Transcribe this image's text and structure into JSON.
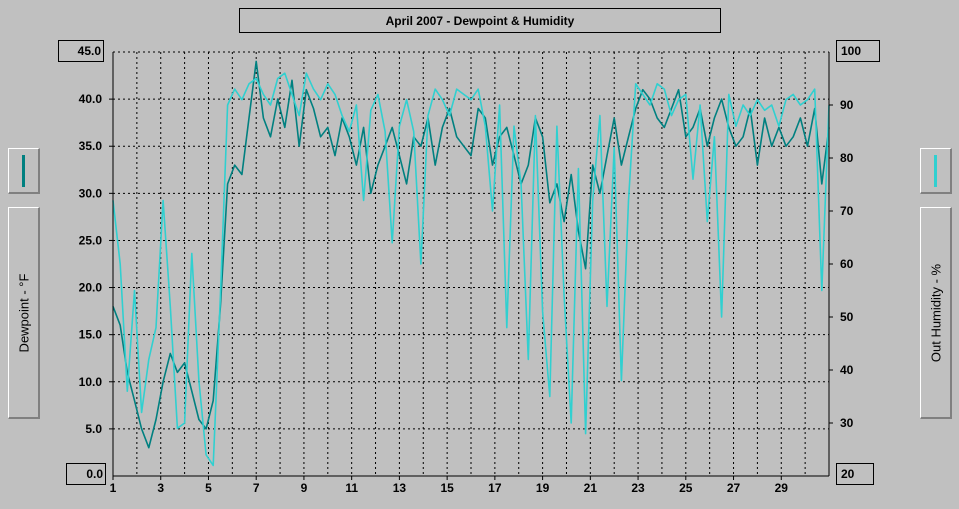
{
  "window": {
    "title": "April 2007 - Dewpoint & Humidity"
  },
  "legend": {
    "left": {
      "axis_title": "Dewpoint - °F",
      "color": "#008080"
    },
    "right": {
      "axis_title": "Out Humidity - %",
      "color": "#30d0d0"
    }
  },
  "chart_data": {
    "type": "line",
    "title": "April 2007 - Dewpoint & Humidity",
    "x_ticks": [
      "1",
      "3",
      "5",
      "7",
      "9",
      "11",
      "13",
      "15",
      "17",
      "19",
      "21",
      "23",
      "25",
      "27",
      "29"
    ],
    "xlim": [
      1,
      31
    ],
    "y_left": {
      "label": "Dewpoint - °F",
      "range": [
        0,
        45
      ],
      "ticks": [
        "0.0",
        "5.0",
        "10.0",
        "15.0",
        "20.0",
        "25.0",
        "30.0",
        "35.0",
        "40.0",
        "45.0"
      ]
    },
    "y_right": {
      "label": "Out Humidity - %",
      "range": [
        20,
        100
      ],
      "ticks": [
        "20",
        "30",
        "40",
        "50",
        "60",
        "70",
        "80",
        "90",
        "100"
      ]
    },
    "grid": true,
    "series": [
      {
        "name": "Dewpoint - °F",
        "axis": "left",
        "color": "#008080",
        "x": [
          1.0,
          1.3,
          1.6,
          1.9,
          2.2,
          2.5,
          2.8,
          3.1,
          3.4,
          3.7,
          4.0,
          4.3,
          4.6,
          4.9,
          5.2,
          5.5,
          5.8,
          6.1,
          6.4,
          6.7,
          7.0,
          7.3,
          7.6,
          7.9,
          8.2,
          8.5,
          8.8,
          9.1,
          9.4,
          9.7,
          10.0,
          10.3,
          10.6,
          10.9,
          11.2,
          11.5,
          11.8,
          12.1,
          12.4,
          12.7,
          13.0,
          13.3,
          13.6,
          13.9,
          14.2,
          14.5,
          14.8,
          15.1,
          15.4,
          15.7,
          16.0,
          16.3,
          16.6,
          16.9,
          17.2,
          17.5,
          17.8,
          18.1,
          18.4,
          18.7,
          19.0,
          19.3,
          19.6,
          19.9,
          20.2,
          20.5,
          20.8,
          21.1,
          21.4,
          21.7,
          22.0,
          22.3,
          22.6,
          22.9,
          23.2,
          23.5,
          23.8,
          24.1,
          24.4,
          24.7,
          25.0,
          25.3,
          25.6,
          25.9,
          26.2,
          26.5,
          26.8,
          27.1,
          27.4,
          27.7,
          28.0,
          28.3,
          28.6,
          28.9,
          29.2,
          29.5,
          29.8,
          30.1,
          30.4,
          30.7,
          31.0
        ],
        "values": [
          18,
          16,
          11,
          8,
          5,
          3,
          6,
          10,
          13,
          11,
          12,
          9,
          6,
          5,
          8,
          18,
          31,
          33,
          32,
          38,
          44,
          38,
          36,
          40,
          37,
          42,
          35,
          41,
          39,
          36,
          37,
          34,
          38,
          36,
          33,
          37,
          30,
          33,
          35,
          37,
          34,
          31,
          36,
          35,
          38,
          33,
          37,
          39,
          36,
          35,
          34,
          39,
          38,
          33,
          36,
          37,
          34,
          31,
          33,
          38,
          36,
          29,
          31,
          27,
          32,
          26,
          22,
          33,
          30,
          34,
          38,
          33,
          36,
          39,
          41,
          40,
          38,
          37,
          39,
          41,
          36,
          37,
          39,
          35,
          38,
          40,
          37,
          35,
          36,
          39,
          33,
          38,
          35,
          37,
          35,
          36,
          38,
          35,
          39,
          31,
          37
        ]
      },
      {
        "name": "Out Humidity - %",
        "axis": "right",
        "color": "#30d0d0",
        "x": [
          1.0,
          1.3,
          1.6,
          1.9,
          2.2,
          2.5,
          2.8,
          3.1,
          3.4,
          3.7,
          4.0,
          4.3,
          4.6,
          4.9,
          5.2,
          5.5,
          5.8,
          6.1,
          6.4,
          6.7,
          7.0,
          7.3,
          7.6,
          7.9,
          8.2,
          8.5,
          8.8,
          9.1,
          9.4,
          9.7,
          10.0,
          10.3,
          10.6,
          10.9,
          11.2,
          11.5,
          11.8,
          12.1,
          12.4,
          12.7,
          13.0,
          13.3,
          13.6,
          13.9,
          14.2,
          14.5,
          14.8,
          15.1,
          15.4,
          15.7,
          16.0,
          16.3,
          16.6,
          16.9,
          17.2,
          17.5,
          17.8,
          18.1,
          18.4,
          18.7,
          19.0,
          19.3,
          19.6,
          19.9,
          20.2,
          20.5,
          20.8,
          21.1,
          21.4,
          21.7,
          22.0,
          22.3,
          22.6,
          22.9,
          23.2,
          23.5,
          23.8,
          24.1,
          24.4,
          24.7,
          25.0,
          25.3,
          25.6,
          25.9,
          26.2,
          26.5,
          26.8,
          27.1,
          27.4,
          27.7,
          28.0,
          28.3,
          28.6,
          28.9,
          29.2,
          29.5,
          29.8,
          30.1,
          30.4,
          30.7,
          31.0
        ],
        "values": [
          72,
          60,
          36,
          55,
          32,
          42,
          48,
          72,
          52,
          29,
          30,
          62,
          38,
          24,
          22,
          54,
          90,
          93,
          91,
          94,
          95,
          92,
          90,
          95,
          96,
          92,
          88,
          96,
          93,
          91,
          94,
          92,
          88,
          85,
          90,
          72,
          89,
          92,
          85,
          64,
          86,
          91,
          85,
          60,
          88,
          93,
          91,
          88,
          93,
          92,
          91,
          93,
          86,
          70,
          90,
          48,
          86,
          75,
          42,
          88,
          51,
          35,
          86,
          54,
          30,
          78,
          28,
          72,
          88,
          52,
          82,
          38,
          72,
          94,
          92,
          90,
          94,
          93,
          88,
          91,
          92,
          76,
          90,
          68,
          84,
          50,
          92,
          86,
          90,
          88,
          91,
          89,
          90,
          86,
          91,
          92,
          90,
          91,
          93,
          55,
          90
        ]
      }
    ]
  }
}
